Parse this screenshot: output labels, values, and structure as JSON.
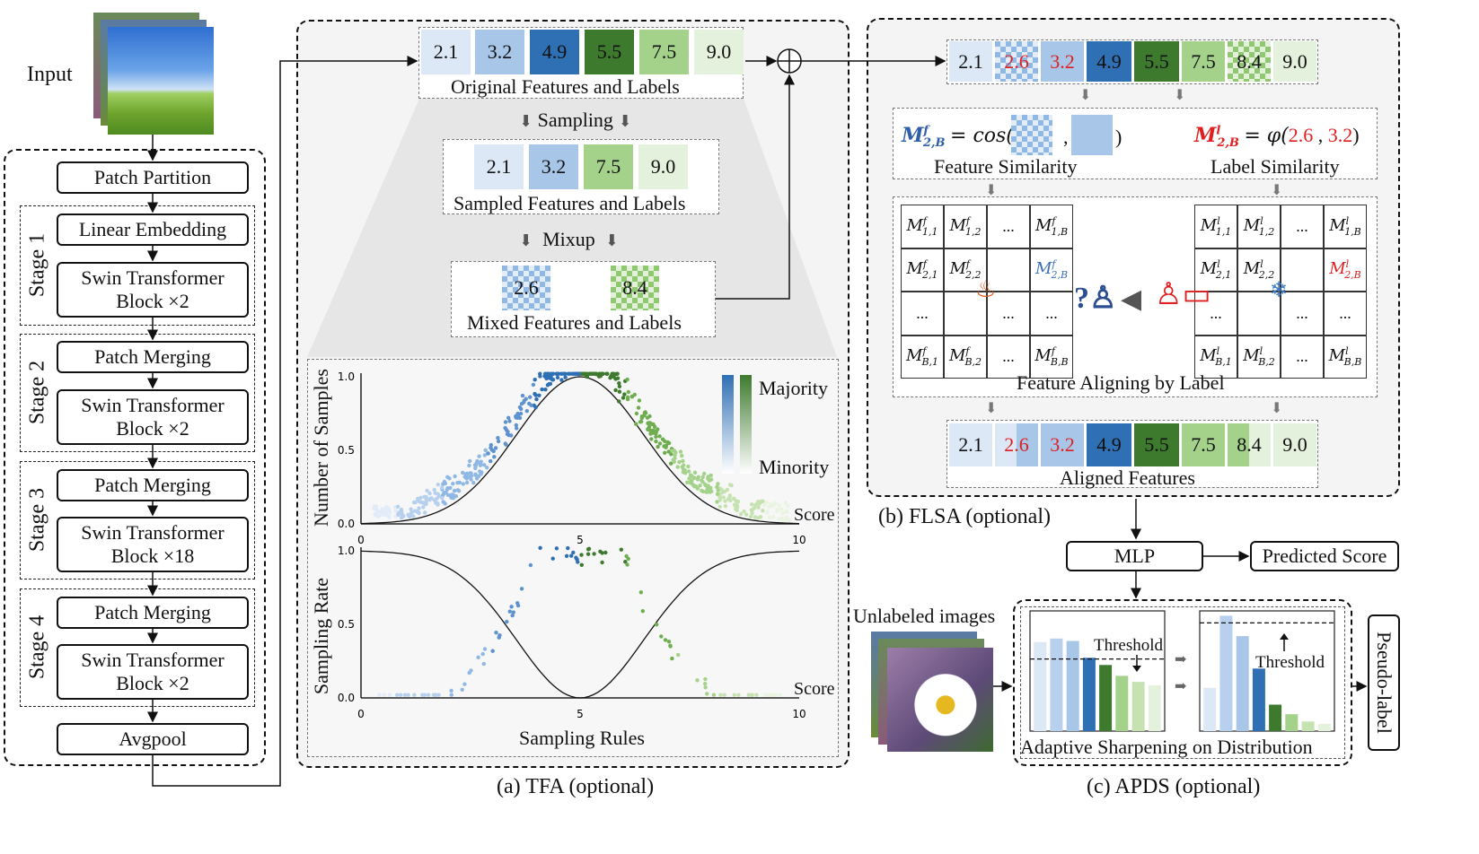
{
  "backbone": {
    "input_label": "Input",
    "patch_partition": "Patch Partition",
    "stages": [
      {
        "label": "Stage 1",
        "top": "Linear Embedding",
        "block": "Swin Transformer\nBlock ×2"
      },
      {
        "label": "Stage 2",
        "top": "Patch Merging",
        "block": "Swin Transformer\nBlock ×2"
      },
      {
        "label": "Stage 3",
        "top": "Patch Merging",
        "block": "Swin Transformer\nBlock ×18"
      },
      {
        "label": "Stage 4",
        "top": "Patch Merging",
        "block": "Swin Transformer\nBlock ×2"
      }
    ],
    "avgpool": "Avgpool"
  },
  "tfa": {
    "caption": "(a) TFA (optional)",
    "original_values": [
      "2.1",
      "3.2",
      "4.9",
      "5.5",
      "7.5",
      "9.0"
    ],
    "original_label": "Original Features and Labels",
    "sampling_label": "Sampling",
    "sampled_values": [
      "2.1",
      "3.2",
      "7.5",
      "9.0"
    ],
    "sampled_label": "Sampled Features and Labels",
    "mixup_label": "Mixup",
    "mixed_values": [
      "2.6",
      "8.4"
    ],
    "mixed_label": "Mixed Features and Labels",
    "sampling_rules": "Sampling Rules",
    "legend": {
      "majority": "Majority",
      "minority": "Minority"
    }
  },
  "chart_data": [
    {
      "type": "scatter",
      "title": "",
      "ylabel": "Number of Samples",
      "xlabel": "Score",
      "xlim": [
        0,
        10
      ],
      "ylim": [
        0,
        1.0
      ],
      "xticks": [
        "0",
        "5",
        "10"
      ],
      "yticks": [
        "0.0",
        "0.5",
        "1.0"
      ],
      "curve": "gaussian bell centered at 5"
    },
    {
      "type": "scatter",
      "title": "",
      "ylabel": "Sampling Rate",
      "xlabel": "Score",
      "xlim": [
        0,
        10
      ],
      "ylim": [
        0,
        1.0
      ],
      "xticks": [
        "0",
        "5",
        "10"
      ],
      "yticks": [
        "0.0",
        "0.5",
        "1.0"
      ],
      "curve": "inverted gaussian with minimum at 5"
    }
  ],
  "flsa": {
    "caption": "(b) FLSA (optional)",
    "values": [
      "2.1",
      "2.6",
      "3.2",
      "4.9",
      "5.5",
      "7.5",
      "8.4",
      "9.0"
    ],
    "feature_similarity_label": "Feature Similarity",
    "label_similarity_label": "Label Similarity",
    "feature_sim_formula": "= cos(",
    "feature_sim_comma": ",",
    "feature_sim_close": ")",
    "label_sim_formula": "= φ(",
    "label_sim_a": "2.6",
    "label_sim_comma": ",",
    "label_sim_b": "3.2",
    "label_sim_close": ")",
    "aligning_label": "Feature Aligning by Label",
    "aligned_values": [
      "2.1",
      "2.6",
      "3.2",
      "4.9",
      "5.5",
      "7.5",
      "8.4",
      "9.0"
    ],
    "aligned_label": "Aligned Features",
    "ellipsis": "..."
  },
  "head": {
    "mlp": "MLP",
    "predicted": "Predicted Score"
  },
  "apds": {
    "caption": "(c) APDS (optional)",
    "unlabeled": "Unlabeled images",
    "threshold": "Threshold",
    "adaptive": "Adaptive Sharpening on Distribution",
    "pseudo": "Pseudo-label",
    "dist_before": [
      0.74,
      0.77,
      0.75,
      0.61,
      0.55,
      0.46,
      0.41,
      0.38
    ],
    "dist_after": [
      0.36,
      0.96,
      0.79,
      0.52,
      0.22,
      0.14,
      0.08,
      0.06
    ],
    "threshold_before": 0.6,
    "threshold_after": 0.9
  }
}
